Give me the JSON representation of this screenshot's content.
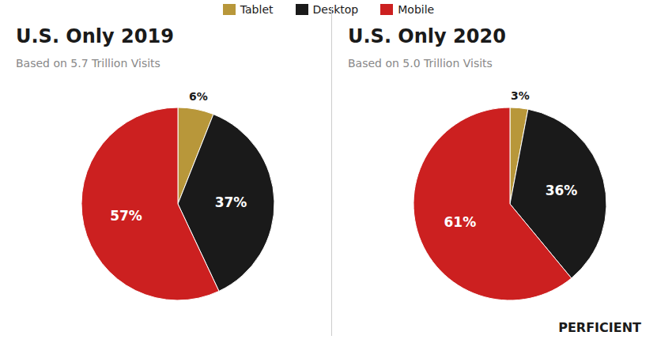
{
  "chart_data": [
    {
      "type": "pie",
      "title": "U.S. Only 2019",
      "subtitle": "Based on 5.7 Trillion Visits",
      "categories": [
        "Tablet",
        "Desktop",
        "Mobile"
      ],
      "values": [
        6,
        37,
        57
      ],
      "value_labels": [
        "6%",
        "37%",
        "57%"
      ],
      "colors": [
        "#b8973a",
        "#1a1a1a",
        "#cc2020"
      ],
      "data_labels": true,
      "legend": "top"
    },
    {
      "type": "pie",
      "title": "U.S. Only 2020",
      "subtitle": "Based on 5.0 Trillion Visits",
      "categories": [
        "Tablet",
        "Desktop",
        "Mobile"
      ],
      "values": [
        3,
        36,
        61
      ],
      "value_labels": [
        "3%",
        "36%",
        "61%"
      ],
      "colors": [
        "#b8973a",
        "#1a1a1a",
        "#cc2020"
      ],
      "data_labels": true,
      "legend": "top",
      "annotation": "PERFICIENT"
    }
  ]
}
